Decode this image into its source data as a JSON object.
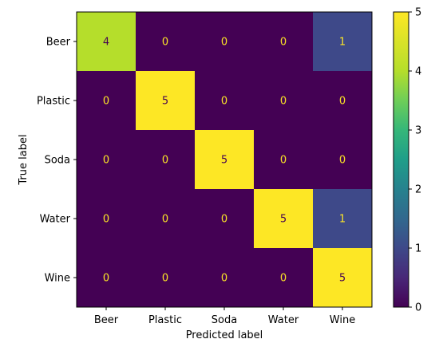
{
  "chart_data": {
    "type": "heatmap",
    "title": "",
    "xlabel": "Predicted label",
    "ylabel": "True label",
    "x_categories": [
      "Beer",
      "Plastic",
      "Soda",
      "Water",
      "Wine"
    ],
    "y_categories": [
      "Beer",
      "Plastic",
      "Soda",
      "Water",
      "Wine"
    ],
    "values": [
      [
        4,
        0,
        0,
        0,
        1
      ],
      [
        0,
        5,
        0,
        0,
        0
      ],
      [
        0,
        0,
        5,
        0,
        0
      ],
      [
        0,
        0,
        0,
        5,
        1
      ],
      [
        0,
        0,
        0,
        0,
        5
      ]
    ],
    "colormap": "viridis",
    "colorbar": {
      "range": [
        0,
        5
      ],
      "ticks": [
        "0",
        "1",
        "2",
        "3",
        "4",
        "5"
      ]
    },
    "colors": {
      "text_on_dark": "#fde725",
      "text_on_light": "#440154"
    },
    "grid": false
  }
}
